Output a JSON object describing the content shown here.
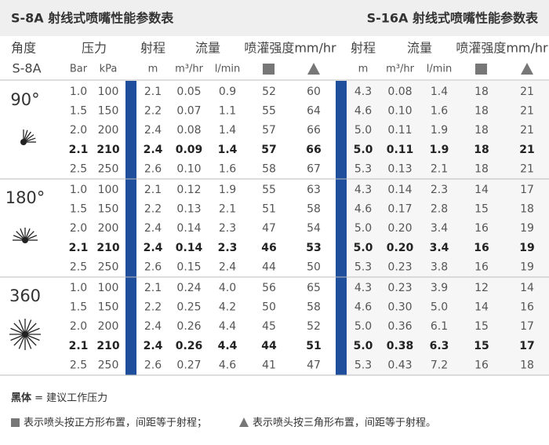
{
  "header": {
    "left_title": "S-8A 射线式喷嘴性能参数表",
    "right_title": "S-16A 射线式喷嘴性能参数表"
  },
  "columns": {
    "row1": [
      "角度",
      "压力",
      "射程",
      "流量",
      "喷灌强度mm/hr",
      "射程",
      "流量",
      "喷灌强度mm/hr"
    ],
    "row2": [
      "S-8A",
      "Bar",
      "kPa",
      "m",
      "m³/hr",
      "l/min",
      "m",
      "m³/hr",
      "l/min"
    ]
  },
  "groups": [
    {
      "angle": "90°",
      "bold_row": 3,
      "rows": [
        [
          "1.0",
          "100",
          "2.1",
          "0.05",
          "0.9",
          "52",
          "60",
          "4.3",
          "0.08",
          "1.4",
          "18",
          "21"
        ],
        [
          "1.5",
          "150",
          "2.2",
          "0.07",
          "1.1",
          "55",
          "64",
          "4.6",
          "0.10",
          "1.6",
          "18",
          "21"
        ],
        [
          "2.0",
          "200",
          "2.4",
          "0.08",
          "1.4",
          "57",
          "66",
          "5.0",
          "0.11",
          "1.9",
          "18",
          "21"
        ],
        [
          "2.1",
          "210",
          "2.4",
          "0.09",
          "1.4",
          "57",
          "66",
          "5.0",
          "0.11",
          "1.9",
          "18",
          "21"
        ],
        [
          "2.5",
          "250",
          "2.6",
          "0.10",
          "1.6",
          "58",
          "67",
          "5.3",
          "0.13",
          "2.1",
          "18",
          "21"
        ]
      ]
    },
    {
      "angle": "180°",
      "bold_row": 3,
      "rows": [
        [
          "1.0",
          "100",
          "2.1",
          "0.12",
          "1.9",
          "55",
          "63",
          "4.3",
          "0.14",
          "2.3",
          "14",
          "17"
        ],
        [
          "1.5",
          "150",
          "2.2",
          "0.13",
          "2.1",
          "51",
          "58",
          "4.6",
          "0.17",
          "2.8",
          "15",
          "18"
        ],
        [
          "2.0",
          "200",
          "2.4",
          "0.14",
          "2.3",
          "47",
          "54",
          "5.0",
          "0.20",
          "3.4",
          "16",
          "19"
        ],
        [
          "2.1",
          "210",
          "2.4",
          "0.14",
          "2.3",
          "46",
          "53",
          "5.0",
          "0.20",
          "3.4",
          "16",
          "19"
        ],
        [
          "2.5",
          "250",
          "2.6",
          "0.15",
          "2.4",
          "44",
          "50",
          "5.3",
          "0.23",
          "3.8",
          "16",
          "19"
        ]
      ]
    },
    {
      "angle": "360",
      "bold_row": 3,
      "rows": [
        [
          "1.0",
          "100",
          "2.1",
          "0.24",
          "4.0",
          "56",
          "65",
          "4.3",
          "0.23",
          "3.9",
          "12",
          "14"
        ],
        [
          "1.5",
          "150",
          "2.2",
          "0.25",
          "4.2",
          "50",
          "58",
          "4.6",
          "0.30",
          "5.0",
          "14",
          "16"
        ],
        [
          "2.0",
          "200",
          "2.4",
          "0.26",
          "4.4",
          "45",
          "52",
          "5.0",
          "0.36",
          "6.1",
          "15",
          "17"
        ],
        [
          "2.1",
          "210",
          "2.4",
          "0.26",
          "4.4",
          "44",
          "51",
          "5.0",
          "0.38",
          "6.3",
          "15",
          "17"
        ],
        [
          "2.5",
          "250",
          "2.6",
          "0.27",
          "4.6",
          "41",
          "47",
          "5.3",
          "0.43",
          "7.2",
          "16",
          "18"
        ]
      ]
    }
  ],
  "notes": {
    "bold_label": "黑体",
    "bold_text": " = 建议工作压力",
    "square_text": "表示喷头按正方形布置，间距等于射程；",
    "triangle_text": "表示喷头按三角形布置，间距等于射程。"
  }
}
